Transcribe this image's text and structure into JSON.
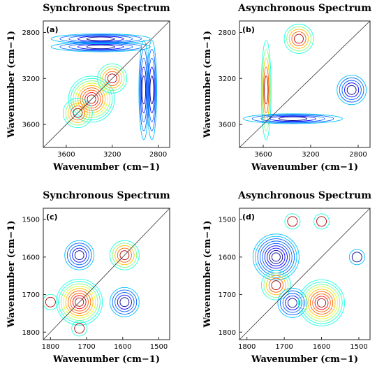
{
  "chart_data": [
    {
      "type": "contour",
      "title": "Synchronous Spectrum",
      "panel_label": "(a)",
      "xlabel": "Wavenumber (cm−1)",
      "ylabel": "Wavenumber (cm−1)",
      "x_ticks": [
        3600,
        3200,
        2800
      ],
      "y_ticks": [
        2800,
        3200,
        3600
      ],
      "xlim": [
        3800,
        2700
      ],
      "ylim": [
        2700,
        3800
      ],
      "diagonal": true,
      "peaks": [
        {
          "x": 3380,
          "y": 3380,
          "sign": "positive",
          "note": "strong auto-peak"
        },
        {
          "x": 3200,
          "y": 3200,
          "sign": "positive"
        },
        {
          "x": 3500,
          "y": 3500,
          "sign": "positive"
        },
        {
          "x": 3300,
          "y": 2925,
          "sign": "negative",
          "note": "cross band"
        },
        {
          "x": 3300,
          "y": 2855,
          "sign": "negative",
          "note": "cross band"
        },
        {
          "x": 2925,
          "y": 3300,
          "sign": "negative",
          "note": "cross band"
        },
        {
          "x": 2855,
          "y": 3300,
          "sign": "negative",
          "note": "cross band"
        }
      ]
    },
    {
      "type": "contour",
      "title": "Asynchronous Spectrum",
      "panel_label": "(b)",
      "xlabel": "Wavenumber (cm−1)",
      "ylabel": "Wavenumber (cm−1)",
      "x_ticks": [
        3600,
        3200,
        2800
      ],
      "y_ticks": [
        2800,
        3200,
        3600
      ],
      "xlim": [
        3800,
        2700
      ],
      "ylim": [
        2700,
        3800
      ],
      "diagonal": true,
      "peaks": [
        {
          "x": 3575,
          "y": 3300,
          "sign": "positive",
          "note": "vertical band"
        },
        {
          "x": 3350,
          "y": 3550,
          "sign": "negative",
          "note": "horizontal band"
        },
        {
          "x": 3300,
          "y": 2855,
          "sign": "positive"
        },
        {
          "x": 2855,
          "y": 3300,
          "sign": "negative"
        }
      ]
    },
    {
      "type": "contour",
      "title": "Synchronous Spectrum",
      "panel_label": "(c)",
      "xlabel": "Wavenumber (cm−1)",
      "ylabel": "Wavenumber (cm−1)",
      "x_ticks": [
        1800,
        1700,
        1600,
        1500
      ],
      "y_ticks": [
        1500,
        1600,
        1700,
        1800
      ],
      "xlim": [
        1820,
        1470
      ],
      "ylim": [
        1470,
        1820
      ],
      "diagonal": true,
      "peaks": [
        {
          "x": 1720,
          "y": 1720,
          "sign": "positive",
          "note": "strong auto-peak"
        },
        {
          "x": 1595,
          "y": 1595,
          "sign": "positive",
          "note": "auto-peak"
        },
        {
          "x": 1720,
          "y": 1595,
          "sign": "negative",
          "note": "cross peak"
        },
        {
          "x": 1595,
          "y": 1720,
          "sign": "negative",
          "note": "cross peak"
        },
        {
          "x": 1800,
          "y": 1720,
          "sign": "positive",
          "note": "weak"
        },
        {
          "x": 1720,
          "y": 1790,
          "sign": "positive",
          "note": "weak"
        }
      ]
    },
    {
      "type": "contour",
      "title": "Asynchronous Spectrum",
      "panel_label": "(d)",
      "xlabel": "Wavenumber (cm−1)",
      "ylabel": "Wavenumber (cm−1)",
      "x_ticks": [
        1800,
        1700,
        1600,
        1500
      ],
      "y_ticks": [
        1500,
        1600,
        1700,
        1800
      ],
      "xlim": [
        1820,
        1470
      ],
      "ylim": [
        1470,
        1820
      ],
      "diagonal": true,
      "peaks": [
        {
          "x": 1722,
          "y": 1600,
          "sign": "negative",
          "note": "strong"
        },
        {
          "x": 1722,
          "y": 1675,
          "sign": "positive"
        },
        {
          "x": 1678,
          "y": 1722,
          "sign": "negative"
        },
        {
          "x": 1600,
          "y": 1722,
          "sign": "positive",
          "note": "strong"
        },
        {
          "x": 1505,
          "y": 1600,
          "sign": "negative",
          "note": "weak"
        },
        {
          "x": 1600,
          "y": 1505,
          "sign": "positive",
          "note": "weak"
        },
        {
          "x": 1678,
          "y": 1505,
          "sign": "positive",
          "note": "weak"
        }
      ]
    }
  ]
}
